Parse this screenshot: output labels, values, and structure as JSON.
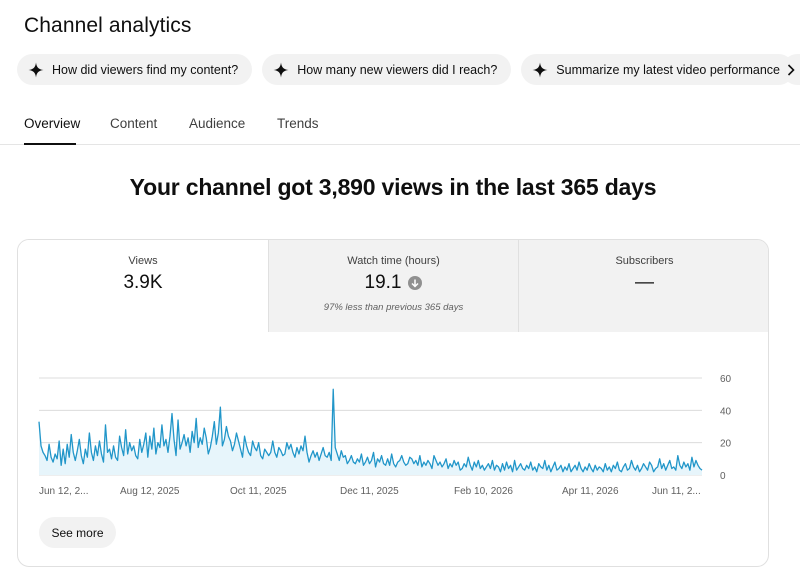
{
  "page": {
    "title": "Channel analytics"
  },
  "chips": [
    {
      "label": "How did viewers find my content?"
    },
    {
      "label": "How many new viewers did I reach?"
    },
    {
      "label": "Summarize my latest video performance"
    }
  ],
  "tabs": [
    {
      "label": "Overview",
      "active": true
    },
    {
      "label": "Content"
    },
    {
      "label": "Audience"
    },
    {
      "label": "Trends"
    }
  ],
  "headline": "Your channel got 3,890 views in the last 365 days",
  "metrics": [
    {
      "label": "Views",
      "value": "3.9K",
      "note": ""
    },
    {
      "label": "Watch time (hours)",
      "value": "19.1",
      "note": "97% less than previous 365 days",
      "trend": "down"
    },
    {
      "label": "Subscribers",
      "value": "—",
      "note": ""
    }
  ],
  "chart_data": {
    "type": "area",
    "series": [
      {
        "values": [
          33,
          18,
          14,
          12,
          9,
          19,
          11,
          8,
          13,
          10,
          21,
          6,
          16,
          7,
          19,
          11,
          25,
          14,
          9,
          15,
          22,
          12,
          7,
          16,
          11,
          26,
          14,
          9,
          18,
          12,
          21,
          13,
          8,
          31,
          14,
          16,
          10,
          18,
          11,
          9,
          24,
          17,
          12,
          28,
          13,
          20,
          15,
          18,
          12,
          10,
          22,
          14,
          19,
          26,
          11,
          24,
          16,
          29,
          13,
          20,
          17,
          31,
          18,
          22,
          14,
          24,
          38,
          22,
          12,
          34,
          16,
          20,
          25,
          18,
          23,
          14,
          27,
          20,
          35,
          17,
          23,
          19,
          29,
          23,
          13,
          17,
          24,
          33,
          19,
          26,
          42,
          18,
          22,
          30,
          24,
          21,
          15,
          19,
          26,
          21,
          16,
          11,
          24,
          18,
          14,
          12,
          21,
          17,
          15,
          20,
          12,
          10,
          16,
          14,
          12,
          14,
          21,
          14,
          11,
          17,
          15,
          12,
          13,
          20,
          16,
          19,
          14,
          11,
          17,
          13,
          18,
          15,
          24,
          14,
          8,
          12,
          15,
          11,
          14,
          9,
          13,
          17,
          12,
          11,
          14,
          9,
          53,
          17,
          13,
          9,
          15,
          11,
          12,
          7,
          9,
          12,
          8,
          7,
          10,
          8,
          13,
          6,
          8,
          11,
          7,
          9,
          14,
          5,
          10,
          8,
          12,
          7,
          6,
          10,
          6,
          13,
          7,
          5,
          8,
          9,
          12,
          8,
          6,
          7,
          11,
          10,
          7,
          9,
          6,
          12,
          5,
          8,
          6,
          9,
          7,
          4,
          12,
          9,
          6,
          8,
          5,
          7,
          10,
          4,
          7,
          5,
          9,
          6,
          8,
          3,
          4,
          7,
          5,
          11,
          6,
          3,
          8,
          5,
          9,
          4,
          6,
          3,
          5,
          7,
          4,
          9,
          3,
          6,
          5,
          2,
          7,
          3,
          8,
          4,
          6,
          2,
          9,
          3,
          5,
          7,
          4,
          3,
          6,
          4,
          8,
          3,
          5,
          2,
          7,
          5,
          4,
          9,
          3,
          6,
          2,
          5,
          8,
          3,
          4,
          6,
          2,
          5,
          3,
          7,
          2,
          4,
          6,
          3,
          8,
          4,
          2,
          5,
          3,
          7,
          4,
          2,
          6,
          3,
          5,
          4,
          2,
          7,
          3,
          5,
          2,
          6,
          4,
          8,
          3,
          2,
          5,
          7,
          3,
          4,
          9,
          5,
          3,
          6,
          2,
          4,
          7,
          5,
          3,
          8,
          6,
          2,
          4,
          5,
          10,
          4,
          7,
          3,
          6,
          9,
          4,
          5,
          3,
          12,
          6,
          4,
          8,
          5,
          7,
          3,
          11,
          5,
          9,
          6,
          4,
          3
        ]
      }
    ],
    "x_ticks": [
      "Jun 12, 2...",
      "Aug 12, 2025",
      "Oct 11, 2025",
      "Dec 11, 2025",
      "Feb 10, 2026",
      "Apr 11, 2026",
      "Jun 11, 2..."
    ],
    "y_ticks": [
      "60",
      "40",
      "20",
      "0"
    ],
    "ylim": [
      0,
      60
    ],
    "grid": true,
    "colors": {
      "line": "#2196c9",
      "fill": "#e7f5fb",
      "grid": "#dcdcdc"
    }
  },
  "see_more": {
    "label": "See more"
  }
}
